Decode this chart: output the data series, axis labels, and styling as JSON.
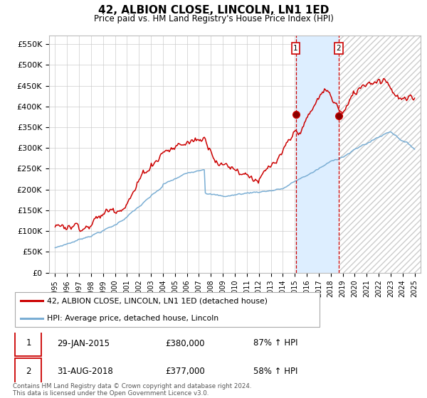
{
  "title": "42, ALBION CLOSE, LINCOLN, LN1 1ED",
  "subtitle": "Price paid vs. HM Land Registry's House Price Index (HPI)",
  "ylabel_ticks": [
    "£0",
    "£50K",
    "£100K",
    "£150K",
    "£200K",
    "£250K",
    "£300K",
    "£350K",
    "£400K",
    "£450K",
    "£500K",
    "£550K"
  ],
  "ytick_values": [
    0,
    50000,
    100000,
    150000,
    200000,
    250000,
    300000,
    350000,
    400000,
    450000,
    500000,
    550000
  ],
  "ylim": [
    0,
    570000
  ],
  "xlim_start": 1994.5,
  "xlim_end": 2025.5,
  "red_line_color": "#cc0000",
  "blue_line_color": "#7aaed4",
  "fill_color": "#ddeeff",
  "hatch_color": "#cccccc",
  "point1_x": 2015.08,
  "point1_y": 380000,
  "point2_x": 2018.67,
  "point2_y": 377000,
  "legend_red_label": "42, ALBION CLOSE, LINCOLN, LN1 1ED (detached house)",
  "legend_blue_label": "HPI: Average price, detached house, Lincoln",
  "table_row1": [
    "1",
    "29-JAN-2015",
    "£380,000",
    "87% ↑ HPI"
  ],
  "table_row2": [
    "2",
    "31-AUG-2018",
    "£377,000",
    "58% ↑ HPI"
  ],
  "footnote": "Contains HM Land Registry data © Crown copyright and database right 2024.\nThis data is licensed under the Open Government Licence v3.0.",
  "background_color": "#ffffff",
  "grid_color": "#cccccc"
}
